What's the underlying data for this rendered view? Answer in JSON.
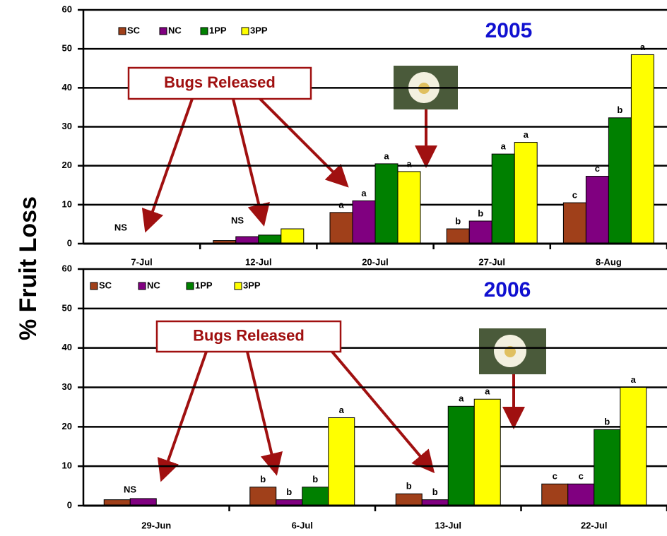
{
  "chart_data": [
    {
      "type": "bar",
      "title": "2005",
      "ylabel": "% Fruit Loss",
      "annotation": "Bugs Released",
      "categories": [
        "7-Jul",
        "12-Jul",
        "20-Jul",
        "27-Jul",
        "8-Aug"
      ],
      "category_labels": [
        "NS",
        "NS",
        null,
        null,
        null
      ],
      "series": [
        {
          "name": "SC",
          "color": "#a0401a",
          "values": [
            0,
            0.8,
            8,
            3.8,
            10.5
          ],
          "letters": [
            null,
            null,
            "a",
            "b",
            "c"
          ]
        },
        {
          "name": "NC",
          "color": "#800080",
          "values": [
            0,
            1.8,
            11,
            5.8,
            17.3
          ],
          "letters": [
            null,
            null,
            "a",
            "b",
            "c"
          ]
        },
        {
          "name": "1PP",
          "color": "#008000",
          "values": [
            0,
            2.2,
            20.5,
            23,
            32.3
          ],
          "letters": [
            null,
            null,
            "a",
            "a",
            "b"
          ]
        },
        {
          "name": "3PP",
          "color": "#ffff00",
          "values": [
            0,
            3.8,
            18.5,
            26,
            48.5
          ],
          "letters": [
            null,
            null,
            "a",
            "a",
            "a"
          ]
        }
      ],
      "ylim": [
        0,
        60
      ],
      "yticks": [
        0,
        10,
        20,
        30,
        40,
        50,
        60
      ],
      "grid": true
    },
    {
      "type": "bar",
      "title": "2006",
      "annotation": "Bugs Released",
      "categories": [
        "29-Jun",
        "6-Jul",
        "13-Jul",
        "22-Jul"
      ],
      "category_labels": [
        "NS",
        null,
        null,
        null
      ],
      "series": [
        {
          "name": "SC",
          "color": "#a0401a",
          "values": [
            1.5,
            4.7,
            3,
            5.5
          ],
          "letters": [
            null,
            "b",
            "b",
            "c"
          ]
        },
        {
          "name": "NC",
          "color": "#800080",
          "values": [
            1.8,
            1.5,
            1.5,
            5.5
          ],
          "letters": [
            null,
            "b",
            "b",
            "c"
          ]
        },
        {
          "name": "1PP",
          "color": "#008000",
          "values": [
            0,
            4.7,
            25.2,
            19.3
          ],
          "letters": [
            null,
            "b",
            "a",
            "b"
          ]
        },
        {
          "name": "3PP",
          "color": "#ffff00",
          "values": [
            0,
            22.3,
            27,
            30
          ],
          "letters": [
            null,
            "a",
            "a",
            "a"
          ]
        }
      ],
      "ylim": [
        0,
        60
      ],
      "yticks": [
        0,
        10,
        20,
        30,
        40,
        50,
        60
      ],
      "grid": true
    }
  ]
}
